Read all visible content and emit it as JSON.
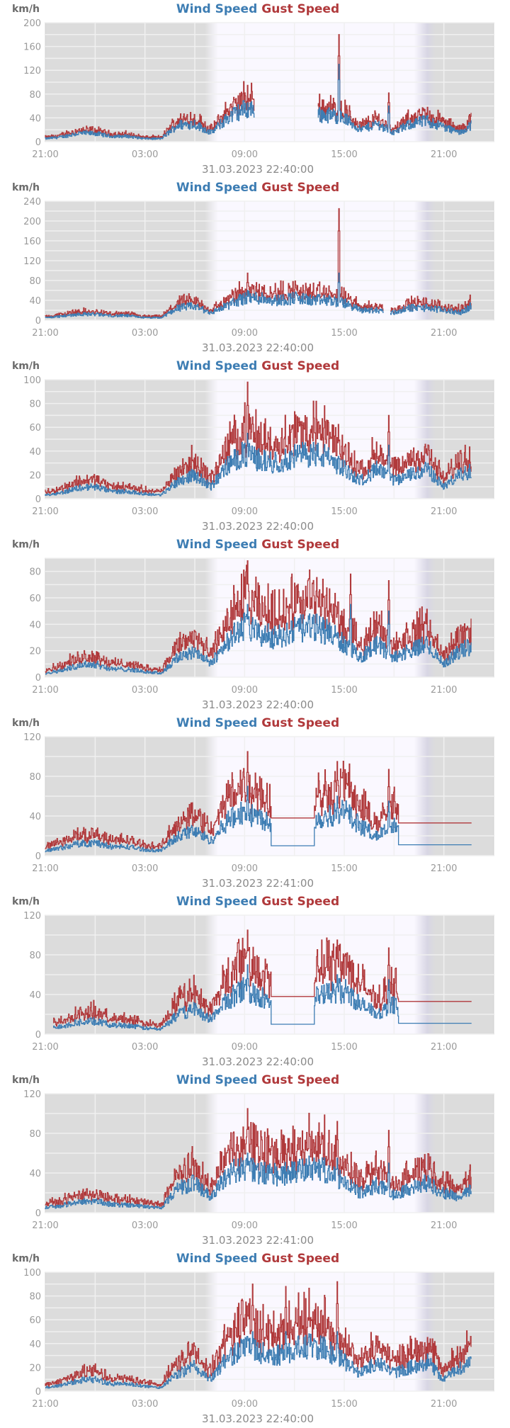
{
  "legend": {
    "wind": "Wind Speed",
    "gust": "Gust Speed",
    "unit": "km/h"
  },
  "colors": {
    "wind": "#3d7db3",
    "gust": "#b0393b",
    "night": "#dcdcdc",
    "day": "#faf8ff",
    "grid": "#f0f0f0",
    "text": "#9a9a9a"
  },
  "x_tick_labels": [
    "21:00",
    "03:00",
    "09:00",
    "15:00",
    "21:00"
  ],
  "chart_data": [
    {
      "type": "line",
      "timestamp": "31.03.2023 22:40:00",
      "ylim": [
        0,
        200
      ],
      "yticks": [
        0,
        40,
        80,
        120,
        160,
        200
      ],
      "ygrid_step": 20,
      "x_hours_from_2100": [
        0,
        25.67
      ],
      "wind_hourly": [
        5,
        8,
        14,
        14,
        9,
        9,
        5,
        5,
        28,
        30,
        15,
        40,
        55,
        55,
        55,
        55,
        45,
        45,
        40,
        20,
        30,
        15,
        30,
        35,
        25,
        15,
        35
      ],
      "gust_ratio": 1.2,
      "gaps": [
        [
          12.6,
          16.4
        ]
      ],
      "spikes": [
        {
          "h": 17.7,
          "wind": 130,
          "gust": 180
        },
        {
          "h": 20.7,
          "wind": 60,
          "gust": 82
        }
      ],
      "flats": []
    },
    {
      "type": "line",
      "timestamp": "31.03.2023 22:40:00",
      "ylim": [
        0,
        240
      ],
      "yticks": [
        0,
        40,
        80,
        120,
        160,
        200,
        240
      ],
      "ygrid_step": 20,
      "x_hours_from_2100": [
        0,
        25.67
      ],
      "wind_hourly": [
        5,
        8,
        12,
        12,
        9,
        9,
        5,
        5,
        25,
        28,
        15,
        30,
        45,
        45,
        40,
        45,
        40,
        40,
        35,
        20,
        20,
        15,
        25,
        25,
        20,
        15,
        35
      ],
      "gust_ratio": 1.25,
      "gaps": [
        [
          20.4,
          20.8
        ]
      ],
      "spikes": [
        {
          "h": 17.7,
          "wind": 95,
          "gust": 225
        },
        {
          "h": 12.2,
          "wind": 60,
          "gust": 95
        }
      ],
      "flats": []
    },
    {
      "type": "line",
      "timestamp": "31.03.2023 22:40:00",
      "ylim": [
        0,
        100
      ],
      "yticks": [
        0,
        20,
        40,
        60,
        80,
        100
      ],
      "ygrid_step": 10,
      "x_hours_from_2100": [
        0,
        25.67
      ],
      "wind_hourly": [
        3,
        5,
        9,
        10,
        6,
        6,
        4,
        3,
        15,
        20,
        10,
        28,
        38,
        32,
        30,
        35,
        38,
        35,
        25,
        15,
        25,
        15,
        20,
        25,
        10,
        20,
        25
      ],
      "gust_ratio": 1.45,
      "gaps": [],
      "spikes": [
        {
          "h": 12.2,
          "wind": 55,
          "gust": 98
        },
        {
          "h": 20.7,
          "wind": 45,
          "gust": 70
        }
      ],
      "flats": []
    },
    {
      "type": "line",
      "timestamp": "31.03.2023 22:40:00",
      "ylim": [
        0,
        90
      ],
      "yticks": [
        0,
        20,
        40,
        60,
        80
      ],
      "ygrid_step": 10,
      "x_hours_from_2100": [
        0,
        25.67
      ],
      "wind_hourly": [
        3,
        5,
        9,
        10,
        6,
        6,
        4,
        3,
        15,
        20,
        10,
        28,
        38,
        32,
        30,
        35,
        38,
        35,
        25,
        15,
        25,
        15,
        20,
        25,
        10,
        20,
        25
      ],
      "gust_ratio": 1.45,
      "gaps": [],
      "spikes": [
        {
          "h": 12.2,
          "wind": 55,
          "gust": 88
        },
        {
          "h": 18.4,
          "wind": 55,
          "gust": 78
        },
        {
          "h": 20.7,
          "wind": 50,
          "gust": 73
        }
      ],
      "flats": []
    },
    {
      "type": "line",
      "timestamp": "31.03.2023 22:41:00",
      "ylim": [
        0,
        120
      ],
      "yticks": [
        0,
        40,
        80,
        120
      ],
      "ygrid_step": 20,
      "x_hours_from_2100": [
        0,
        25.67
      ],
      "wind_hourly": [
        5,
        8,
        12,
        13,
        9,
        9,
        6,
        5,
        20,
        25,
        15,
        35,
        45,
        38,
        30,
        10,
        35,
        40,
        45,
        30,
        20,
        30,
        15,
        11,
        11,
        11,
        11
      ],
      "gust_ratio": 1.55,
      "gaps": [],
      "spikes": [
        {
          "h": 12.2,
          "wind": 70,
          "gust": 105
        },
        {
          "h": 17.6,
          "wind": 60,
          "gust": 95
        },
        {
          "h": 20.7,
          "wind": 55,
          "gust": 87
        }
      ],
      "flats": [
        {
          "from": 13.6,
          "to": 16.2,
          "wind": 10,
          "gust": 38
        },
        {
          "from": 21.3,
          "to": 25.67,
          "wind": 11,
          "gust": 33
        }
      ]
    },
    {
      "type": "line",
      "timestamp": "31.03.2023 22:40:00",
      "ylim": [
        0,
        120
      ],
      "yticks": [
        0,
        40,
        80,
        120
      ],
      "ygrid_step": 20,
      "x_hours_from_2100": [
        0.5,
        25.67
      ],
      "wind_hourly": [
        5,
        8,
        12,
        13,
        9,
        9,
        6,
        5,
        20,
        25,
        15,
        35,
        45,
        38,
        30,
        10,
        35,
        40,
        45,
        30,
        20,
        30,
        15,
        11,
        11,
        11,
        11
      ],
      "gust_ratio": 1.55,
      "gaps": [],
      "spikes": [
        {
          "h": 12.2,
          "wind": 70,
          "gust": 105
        },
        {
          "h": 17.6,
          "wind": 60,
          "gust": 95
        },
        {
          "h": 20.7,
          "wind": 55,
          "gust": 87
        }
      ],
      "flats": [
        {
          "from": 13.6,
          "to": 16.2,
          "wind": 10,
          "gust": 38
        },
        {
          "from": 21.3,
          "to": 25.67,
          "wind": 11,
          "gust": 33
        }
      ]
    },
    {
      "type": "line",
      "timestamp": "31.03.2023 22:41:00",
      "ylim": [
        0,
        120
      ],
      "yticks": [
        0,
        40,
        80,
        120
      ],
      "ygrid_step": 20,
      "x_hours_from_2100": [
        0,
        25.67
      ],
      "wind_hourly": [
        5,
        7,
        11,
        12,
        8,
        8,
        6,
        5,
        25,
        30,
        15,
        40,
        45,
        40,
        38,
        40,
        45,
        42,
        30,
        20,
        28,
        18,
        25,
        30,
        20,
        15,
        28
      ],
      "gust_ratio": 1.45,
      "gaps": [],
      "spikes": [
        {
          "h": 12.2,
          "wind": 60,
          "gust": 105
        },
        {
          "h": 17.6,
          "wind": 55,
          "gust": 92
        },
        {
          "h": 20.7,
          "wind": 50,
          "gust": 83
        }
      ],
      "flats": []
    },
    {
      "type": "line",
      "timestamp": "31.03.2023 22:40:00",
      "ylim": [
        0,
        100
      ],
      "yticks": [
        0,
        20,
        40,
        60,
        80,
        100
      ],
      "ygrid_step": 10,
      "x_hours_from_2100": [
        0,
        25.67
      ],
      "wind_hourly": [
        3,
        5,
        9,
        10,
        6,
        6,
        4,
        3,
        15,
        20,
        10,
        28,
        38,
        32,
        30,
        35,
        38,
        35,
        25,
        15,
        25,
        15,
        20,
        25,
        10,
        20,
        25
      ],
      "gust_ratio": 1.5,
      "gaps": [],
      "spikes": [
        {
          "h": 12.5,
          "wind": 50,
          "gust": 90
        },
        {
          "h": 14.5,
          "wind": 50,
          "gust": 88
        },
        {
          "h": 17.6,
          "wind": 50,
          "gust": 92
        }
      ],
      "flats": []
    }
  ]
}
